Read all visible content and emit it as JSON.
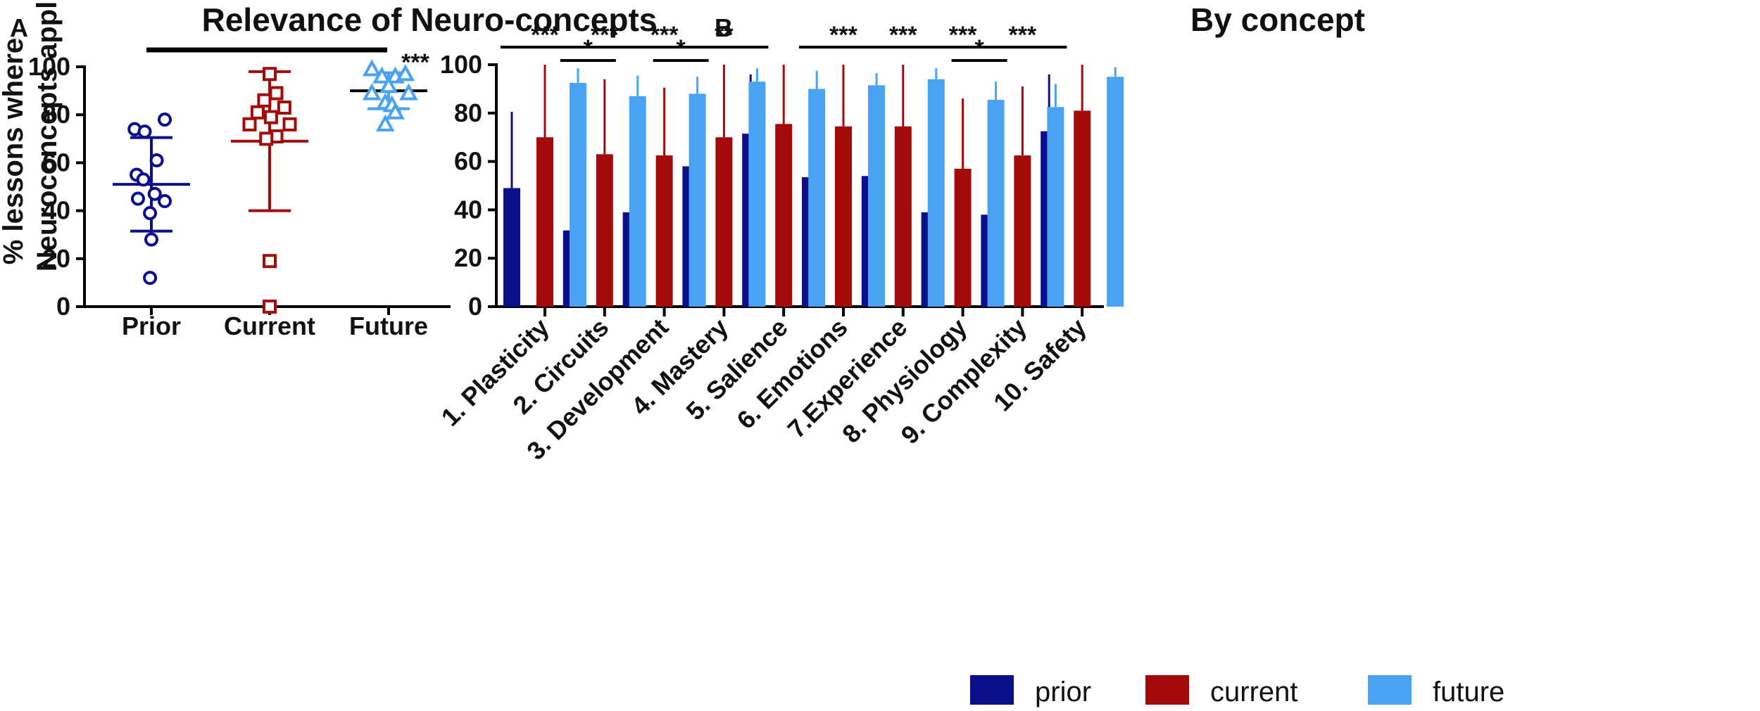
{
  "colors": {
    "prior": "#0b0f8a",
    "current": "#a40a0a",
    "future": "#4aa3f2"
  },
  "chart_data": [
    {
      "panel": "A",
      "type": "scatter",
      "title": "Relevance of Neuro-concepts",
      "ylabel_lines": [
        "% lessons where",
        "Neuroconcepts applied"
      ],
      "ylim": [
        0,
        100
      ],
      "yticks": [
        0,
        20,
        40,
        60,
        80,
        100
      ],
      "categories": [
        "Prior",
        "Current",
        "Future"
      ],
      "significance": "***",
      "groups": [
        {
          "name": "Prior",
          "marker": "circle",
          "mean": 51,
          "sd_low": 31.5,
          "sd_high": 70.5,
          "points": [
            [
              -0.25,
              74
            ],
            [
              -0.1,
              73
            ],
            [
              0.2,
              78
            ],
            [
              0.08,
              61
            ],
            [
              -0.22,
              55
            ],
            [
              -0.12,
              53
            ],
            [
              0.05,
              47
            ],
            [
              -0.2,
              45
            ],
            [
              0.2,
              44
            ],
            [
              -0.02,
              39
            ],
            [
              0,
              28
            ],
            [
              -0.02,
              12
            ]
          ]
        },
        {
          "name": "Current",
          "marker": "square",
          "mean": 69,
          "sd_low": 40,
          "sd_high": 98,
          "points": [
            [
              0,
              97
            ],
            [
              0.1,
              89
            ],
            [
              -0.08,
              86
            ],
            [
              0.22,
              83
            ],
            [
              -0.18,
              81
            ],
            [
              0.02,
              79
            ],
            [
              -0.3,
              76
            ],
            [
              0.3,
              76
            ],
            [
              0.1,
              71
            ],
            [
              -0.05,
              70
            ],
            [
              0,
              19
            ],
            [
              0,
              0
            ]
          ]
        },
        {
          "name": "Future",
          "marker": "triangle",
          "mean": 90,
          "sd_low": 82.5,
          "sd_high": 97.5,
          "points": [
            [
              -0.25,
              99
            ],
            [
              -0.1,
              96
            ],
            [
              0.1,
              96
            ],
            [
              0.25,
              97
            ],
            [
              0,
              92
            ],
            [
              -0.25,
              89
            ],
            [
              0.3,
              89
            ],
            [
              -0.05,
              85
            ],
            [
              0.05,
              84
            ],
            [
              0.1,
              81
            ],
            [
              -0.05,
              76
            ]
          ]
        }
      ]
    },
    {
      "panel": "B",
      "type": "bar",
      "title": "By concept",
      "ylim": [
        0,
        100
      ],
      "yticks": [
        0,
        20,
        40,
        60,
        80,
        100
      ],
      "categories": [
        "1. Plasticity",
        "2. Circuits",
        "3. Development",
        "4. Mastery",
        "5. Salience",
        "6. Emotions",
        "7.Experience",
        "8. Physiology",
        "9. Complexity",
        "10. Safety"
      ],
      "series": [
        {
          "name": "prior",
          "values": [
            49,
            31.5,
            39,
            58,
            71.5,
            53.5,
            54,
            39,
            38,
            72.5
          ],
          "errors": [
            80.5,
            59,
            67,
            82.5,
            96,
            81,
            77,
            68,
            62,
            96
          ]
        },
        {
          "name": "current",
          "values": [
            70,
            63,
            62.5,
            70,
            75.5,
            74.5,
            74.5,
            57,
            62.5,
            81
          ],
          "errors": [
            100,
            94,
            90.5,
            100,
            100,
            100,
            100,
            86,
            91,
            100
          ]
        },
        {
          "name": "future",
          "values": [
            92.5,
            87,
            88,
            93,
            90,
            91.5,
            94,
            85.5,
            82.5,
            95
          ],
          "errors": [
            98.5,
            95.5,
            95,
            98.5,
            97.5,
            96.5,
            98.5,
            93,
            92,
            99
          ]
        }
      ],
      "significance": [
        {
          "cat": 0,
          "from": "prior",
          "to": "future",
          "label": "***",
          "level": 0
        },
        {
          "cat": 1,
          "from": "prior",
          "to": "future",
          "label": "***",
          "level": 0
        },
        {
          "cat": 1,
          "from": "prior",
          "to": "current",
          "label": "*",
          "level": 1
        },
        {
          "cat": 2,
          "from": "prior",
          "to": "future",
          "label": "***",
          "level": 0
        },
        {
          "cat": 2,
          "from": "current",
          "to": "future",
          "label": "*",
          "level": 1
        },
        {
          "cat": 3,
          "from": "prior",
          "to": "future",
          "label": "**",
          "level": 0
        },
        {
          "cat": 5,
          "from": "prior",
          "to": "future",
          "label": "***",
          "level": 0
        },
        {
          "cat": 6,
          "from": "prior",
          "to": "future",
          "label": "***",
          "level": 0
        },
        {
          "cat": 7,
          "from": "prior",
          "to": "future",
          "label": "***",
          "level": 0
        },
        {
          "cat": 7,
          "from": "current",
          "to": "future",
          "label": "*",
          "level": 1
        },
        {
          "cat": 8,
          "from": "prior",
          "to": "future",
          "label": "***",
          "level": 0
        }
      ],
      "legend": [
        "prior",
        "current",
        "future"
      ]
    }
  ]
}
